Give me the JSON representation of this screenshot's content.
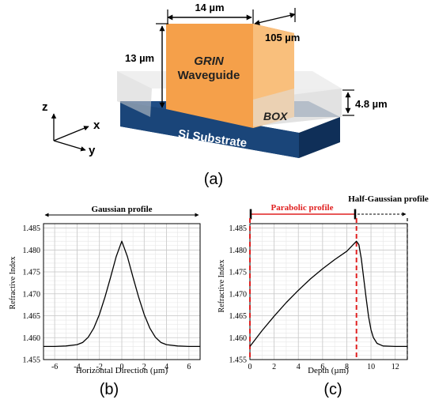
{
  "panel_a": {
    "caption": "(a)",
    "dim_width": "14 µm",
    "dim_length": "105 µm",
    "dim_height": "13 µm",
    "dim_box": "4.8 µm",
    "waveguide_line1": "GRIN",
    "waveguide_line2": "Waveguide",
    "box_label": "BOX",
    "substrate_label": "Si Substrate",
    "axis_z": "z",
    "axis_x": "x",
    "axis_y": "y",
    "colors": {
      "waveguide_front": "#f5a04a",
      "waveguide_top": "#ef7d2d",
      "waveguide_side": "#f9bf7c",
      "substrate_top": "#1f4d85",
      "substrate_front": "#173e70",
      "substrate_side": "#0f2f58",
      "box": "#d9d9d9"
    }
  },
  "panel_b": {
    "caption": "(b)",
    "profile_label": "Gaussian profile",
    "ylabel": "Refractive Index",
    "xlabel": "Horizontal Direction (µm)",
    "xticks": [
      "-6",
      "-4",
      "-2",
      "0",
      "2",
      "4",
      "6"
    ],
    "yticks": [
      "1.455",
      "1.460",
      "1.465",
      "1.470",
      "1.475",
      "1.480",
      "1.485"
    ]
  },
  "panel_c": {
    "caption": "(c)",
    "parabolic_label": "Parabolic profile",
    "halfgauss_label": "Half-Gaussian profile",
    "ylabel": "Refractive Index",
    "xlabel": "Depth (µm)",
    "xticks": [
      "0",
      "2",
      "4",
      "6",
      "8",
      "10",
      "12"
    ],
    "yticks": [
      "1.455",
      "1.460",
      "1.465",
      "1.470",
      "1.475",
      "1.480",
      "1.485"
    ],
    "accent": "#e02020"
  },
  "chart_data": [
    {
      "type": "line",
      "xlabel": "Horizontal Direction (µm)",
      "ylabel": "Refractive Index",
      "xlim": [
        -7,
        7
      ],
      "ylim": [
        1.455,
        1.486
      ],
      "grid": true,
      "series": [
        {
          "x": [
            -7,
            -6,
            -5,
            -4,
            -3.5,
            -3,
            -2.5,
            -2,
            -1.5,
            -1,
            -0.5,
            0,
            0.5,
            1,
            1.5,
            2,
            2.5,
            3,
            3.5,
            4,
            5,
            6,
            7
          ],
          "y": [
            1.458,
            1.458,
            1.4581,
            1.4584,
            1.4589,
            1.4601,
            1.4622,
            1.4653,
            1.4693,
            1.4738,
            1.4785,
            1.482,
            1.4785,
            1.4738,
            1.4693,
            1.4653,
            1.4622,
            1.4601,
            1.4589,
            1.4584,
            1.4581,
            1.458,
            1.458
          ]
        }
      ]
    },
    {
      "type": "line",
      "xlabel": "Depth (µm)",
      "ylabel": "Refractive Index",
      "xlim": [
        0,
        13
      ],
      "ylim": [
        1.455,
        1.486
      ],
      "grid": true,
      "series": [
        {
          "x": [
            0,
            0.5,
            1,
            2,
            3,
            4,
            5,
            6,
            7,
            8,
            8.8,
            9.0,
            9.2,
            9.4,
            9.6,
            9.8,
            10.0,
            10.2,
            10.5,
            11,
            12,
            13
          ],
          "y": [
            1.458,
            1.4598,
            1.4616,
            1.4649,
            1.468,
            1.4708,
            1.4734,
            1.4757,
            1.4778,
            1.4797,
            1.482,
            1.4812,
            1.478,
            1.4735,
            1.469,
            1.4648,
            1.4618,
            1.46,
            1.4587,
            1.4581,
            1.458,
            1.458
          ]
        }
      ]
    }
  ]
}
